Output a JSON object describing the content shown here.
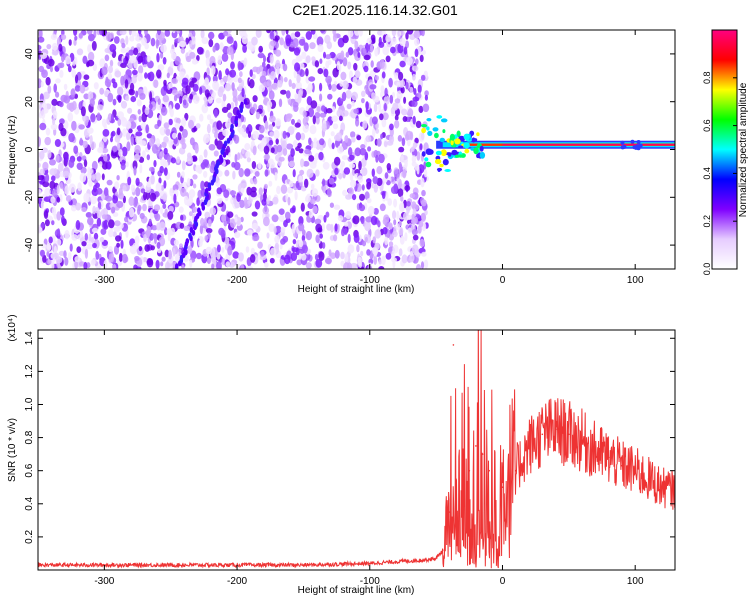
{
  "title": "C2E1.2025.116.14.32.G01",
  "chart_data": [
    {
      "type": "heatmap",
      "xlabel": "Height of straight line (km)",
      "ylabel": "Frequency (Hz)",
      "xlim": [
        -350,
        130
      ],
      "ylim": [
        -50,
        50
      ],
      "xticks": [
        -300,
        -200,
        -100,
        0,
        100
      ],
      "yticks": [
        -40,
        -20,
        0,
        20,
        40
      ],
      "colorbar": {
        "label": "Normalized spectral amplitude",
        "range": [
          0,
          1
        ],
        "ticks": [
          "0.0",
          "0.2",
          "0.4",
          "0.6",
          "0.8"
        ],
        "colors": [
          "#ffffff",
          "#e6ccff",
          "#7f00ff",
          "#0000ff",
          "#00ffff",
          "#00ff00",
          "#ffff00",
          "#ff0000",
          "#ff0080"
        ]
      },
      "noise_region_x": [
        -350,
        -60
      ],
      "signal_line": {
        "x_start": -60,
        "x_end": 130,
        "frequency": 2
      },
      "diagonal_feature": {
        "x_start": -245,
        "x_end": -195,
        "frequency_start": -50,
        "frequency_end": 20
      }
    },
    {
      "type": "line",
      "xlabel": "Height of straight line (km)",
      "ylabel": "SNR (10 * v/v)",
      "yscale_label": "(x10⁴)",
      "xlim": [
        -350,
        130
      ],
      "ylim": [
        0,
        1.45
      ],
      "xticks": [
        -300,
        -200,
        -100,
        0,
        100
      ],
      "yticks": [
        "0.2",
        "0.4",
        "0.6",
        "0.8",
        "1.0",
        "1.2",
        "1.4"
      ],
      "series": [
        {
          "color": "#ee3333",
          "x": [
            -350,
            -300,
            -250,
            -200,
            -150,
            -100,
            -80,
            -60,
            -50,
            -45,
            -40,
            -37,
            -35,
            -30,
            -25,
            -20,
            -18,
            -15,
            -10,
            0,
            10,
            20,
            30,
            40,
            50,
            60,
            70,
            80,
            90,
            100,
            110,
            120,
            130
          ],
          "values": [
            0.03,
            0.03,
            0.03,
            0.03,
            0.03,
            0.04,
            0.05,
            0.06,
            0.07,
            0.12,
            0.35,
            1.36,
            0.55,
            0.7,
            0.6,
            0.75,
            1.45,
            0.7,
            0.6,
            0.5,
            0.6,
            0.75,
            0.82,
            0.85,
            0.82,
            0.78,
            0.72,
            0.68,
            0.63,
            0.6,
            0.55,
            0.5,
            0.48
          ]
        }
      ]
    }
  ]
}
